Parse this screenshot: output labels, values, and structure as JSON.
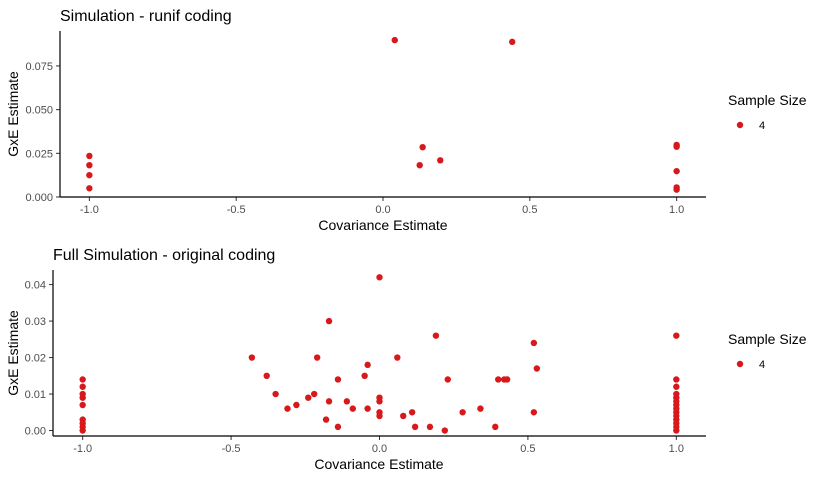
{
  "chart_data": [
    {
      "type": "scatter",
      "title": "Simulation - runif coding",
      "xlabel": "Covariance Estimate",
      "ylabel": "GxE Estimate",
      "xlim": [
        -1.1,
        1.1
      ],
      "ylim": [
        0,
        0.095
      ],
      "x_ticks": [
        -1.0,
        -0.5,
        0.0,
        0.5,
        1.0
      ],
      "x_tick_labels": [
        "-1.0",
        "-0.5",
        "0.0",
        "0.5",
        "1.0"
      ],
      "y_ticks": [
        0.0,
        0.025,
        0.05,
        0.075
      ],
      "y_tick_labels": [
        "0.000",
        "0.025",
        "0.050",
        "0.075"
      ],
      "grid": false,
      "legend": {
        "title": "Sample Size",
        "placement": "right",
        "entries": [
          {
            "label": "4",
            "color": "#d7191c"
          }
        ]
      },
      "series": [
        {
          "name": "4",
          "color": "#d7191c",
          "points": [
            [
              -1.0,
              0.0235
            ],
            [
              -1.0,
              0.0182
            ],
            [
              -1.0,
              0.0125
            ],
            [
              -1.0,
              0.005
            ],
            [
              0.04,
              0.0898
            ],
            [
              0.44,
              0.0888
            ],
            [
              0.135,
              0.0285
            ],
            [
              0.125,
              0.0182
            ],
            [
              0.195,
              0.021
            ],
            [
              1.0,
              0.0298
            ],
            [
              1.0,
              0.0288
            ],
            [
              1.0,
              0.0148
            ],
            [
              1.0,
              0.0055
            ],
            [
              1.0,
              0.0042
            ]
          ]
        }
      ]
    },
    {
      "type": "scatter",
      "title": "Full Simulation - original coding",
      "xlabel": "Covariance Estimate",
      "ylabel": "GxE Estimate",
      "xlim": [
        -1.1,
        1.1
      ],
      "ylim": [
        -0.0015,
        0.044
      ],
      "x_ticks": [
        -1.0,
        -0.5,
        0.0,
        0.5,
        1.0
      ],
      "x_tick_labels": [
        "-1.0",
        "-0.5",
        "0.0",
        "0.5",
        "1.0"
      ],
      "y_ticks": [
        0.0,
        0.01,
        0.02,
        0.03,
        0.04
      ],
      "y_tick_labels": [
        "0.00",
        "0.01",
        "0.02",
        "0.03",
        "0.04"
      ],
      "grid": false,
      "legend": {
        "title": "Sample Size",
        "placement": "right",
        "entries": [
          {
            "label": "4",
            "color": "#d7191c"
          }
        ]
      },
      "series": [
        {
          "name": "4",
          "color": "#d7191c",
          "points": [
            [
              -1.0,
              0.014
            ],
            [
              -1.0,
              0.012
            ],
            [
              -1.0,
              0.01
            ],
            [
              -1.0,
              0.009
            ],
            [
              -1.0,
              0.007
            ],
            [
              -1.0,
              0.003
            ],
            [
              -1.0,
              0.002
            ],
            [
              -1.0,
              0.001
            ],
            [
              -1.0,
              0.0
            ],
            [
              -0.43,
              0.02
            ],
            [
              -0.38,
              0.015
            ],
            [
              -0.35,
              0.01
            ],
            [
              -0.31,
              0.006
            ],
            [
              -0.28,
              0.007
            ],
            [
              -0.24,
              0.009
            ],
            [
              -0.22,
              0.01
            ],
            [
              -0.21,
              0.02
            ],
            [
              -0.17,
              0.03
            ],
            [
              -0.17,
              0.008
            ],
            [
              -0.18,
              0.003
            ],
            [
              -0.14,
              0.014
            ],
            [
              -0.14,
              0.001
            ],
            [
              -0.11,
              0.008
            ],
            [
              -0.09,
              0.006
            ],
            [
              -0.05,
              0.015
            ],
            [
              -0.04,
              0.018
            ],
            [
              -0.04,
              0.006
            ],
            [
              0.0,
              0.042
            ],
            [
              0.0,
              0.009
            ],
            [
              0.0,
              0.008
            ],
            [
              0.0,
              0.005
            ],
            [
              0.0,
              0.004
            ],
            [
              0.06,
              0.02
            ],
            [
              0.08,
              0.004
            ],
            [
              0.11,
              0.005
            ],
            [
              0.12,
              0.001
            ],
            [
              0.17,
              0.001
            ],
            [
              0.19,
              0.026
            ],
            [
              0.22,
              0.0
            ],
            [
              0.23,
              0.014
            ],
            [
              0.28,
              0.005
            ],
            [
              0.34,
              0.006
            ],
            [
              0.39,
              0.001
            ],
            [
              0.4,
              0.014
            ],
            [
              0.42,
              0.014
            ],
            [
              0.43,
              0.014
            ],
            [
              0.52,
              0.024
            ],
            [
              0.52,
              0.005
            ],
            [
              0.53,
              0.017
            ],
            [
              1.0,
              0.026
            ],
            [
              1.0,
              0.014
            ],
            [
              1.0,
              0.012
            ],
            [
              1.0,
              0.01
            ],
            [
              1.0,
              0.009
            ],
            [
              1.0,
              0.008
            ],
            [
              1.0,
              0.007
            ],
            [
              1.0,
              0.006
            ],
            [
              1.0,
              0.005
            ],
            [
              1.0,
              0.004
            ],
            [
              1.0,
              0.003
            ],
            [
              1.0,
              0.002
            ],
            [
              1.0,
              0.001
            ],
            [
              1.0,
              0.0
            ]
          ]
        }
      ]
    }
  ]
}
